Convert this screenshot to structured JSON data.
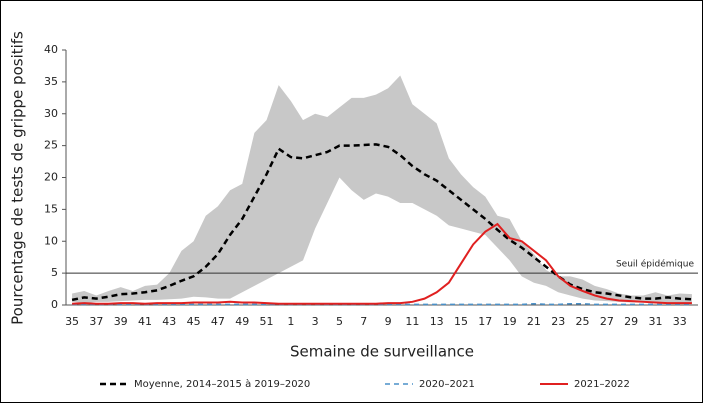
{
  "chart_data": {
    "type": "line",
    "y_label": "Pourcentage de tests de grippe positifs",
    "x_label": "Semaine de surveillance",
    "categories": [
      "35",
      null,
      "37",
      null,
      "39",
      null,
      "41",
      null,
      "43",
      null,
      "45",
      null,
      "47",
      null,
      "49",
      null,
      "51",
      null,
      "1",
      null,
      "3",
      null,
      "5",
      null,
      "7",
      null,
      "9",
      null,
      "11",
      null,
      "13",
      null,
      "15",
      null,
      "17",
      null,
      "19",
      null,
      "21",
      null,
      "23",
      null,
      "25",
      null,
      "27",
      null,
      "29",
      null,
      "31",
      null,
      "33",
      null
    ],
    "ylim": [
      0,
      40
    ],
    "yticks": [
      0,
      5,
      10,
      15,
      20,
      25,
      30,
      35,
      40
    ],
    "grid": false,
    "band": {
      "color": "#c8c8c8",
      "lower": [
        0.5,
        0.3,
        0.5,
        0.5,
        0.6,
        0.7,
        0.8,
        0.8,
        0.9,
        1.0,
        1.3,
        1.2,
        1.0,
        1.0,
        2,
        3,
        4,
        5,
        6,
        7,
        12,
        16,
        20,
        18,
        16.5,
        17.5,
        17,
        16,
        16,
        15,
        14,
        12.5,
        12,
        11.5,
        11,
        9,
        7,
        4.5,
        3.5,
        3,
        2,
        1.5,
        1,
        0.7,
        0.6,
        0.5,
        0.4,
        0.4,
        0.5,
        0.4,
        0.4,
        0.4
      ],
      "upper": [
        1.8,
        2.2,
        1.5,
        2.2,
        2.8,
        2.2,
        3,
        3.2,
        5,
        8.5,
        10,
        14,
        15.5,
        18,
        19,
        27,
        29,
        34.5,
        32,
        29,
        30,
        29.5,
        31,
        32.5,
        32.5,
        33,
        34,
        36,
        31.5,
        30,
        28.5,
        23,
        20.5,
        18.5,
        17,
        14,
        13.5,
        10,
        8,
        5.5,
        4.5,
        4.5,
        4,
        3,
        2.5,
        1.8,
        1.5,
        1.5,
        2,
        1.5,
        1.8,
        1.7
      ]
    },
    "threshold": {
      "value": 5,
      "label": "Seuil épidémique"
    },
    "legend": "bottom",
    "series": [
      {
        "name": "Moyenne, 2014–2015 à 2019–2020",
        "color": "#000000",
        "dash": "dashed",
        "width": 2.5,
        "values": [
          0.8,
          1.2,
          1.0,
          1.3,
          1.7,
          1.8,
          2.0,
          2.3,
          3.0,
          3.8,
          4.5,
          6.0,
          8.0,
          11,
          13.5,
          17,
          20.5,
          24.5,
          23.2,
          23,
          23.5,
          24,
          25,
          25,
          25.1,
          25.2,
          24.8,
          23.5,
          21.8,
          20.5,
          19.5,
          18,
          16.5,
          15,
          13.5,
          11.8,
          10.2,
          9,
          7.5,
          6,
          4.5,
          3.2,
          2.5,
          2.0,
          1.8,
          1.5,
          1.2,
          1.0,
          1.0,
          1.2,
          1.0,
          0.9
        ]
      },
      {
        "name": "2020–2021",
        "color": "#4a90c8",
        "dash": "dashed",
        "width": 1.5,
        "values": [
          0.1,
          0.1,
          0.1,
          0.1,
          0.1,
          0.1,
          0.1,
          0.1,
          0.1,
          0.1,
          0.1,
          0.1,
          0.1,
          0.1,
          0.1,
          0.1,
          0.1,
          0.1,
          0.1,
          0.1,
          0.1,
          0.1,
          0.1,
          0.1,
          0.1,
          0.1,
          0.1,
          0.1,
          0.1,
          0.1,
          0.1,
          0.1,
          0.1,
          0.1,
          0.1,
          0.1,
          0.1,
          0.1,
          0.2,
          0.1,
          0.1,
          0.2,
          0.2,
          0.1,
          0.1,
          0.1,
          0.1,
          0.1,
          0.1,
          0.1,
          0.1,
          0.1
        ]
      },
      {
        "name": "2021–2022",
        "color": "#e02020",
        "dash": "solid",
        "width": 2,
        "values": [
          0.2,
          0.3,
          0.2,
          0.2,
          0.3,
          0.3,
          0.2,
          0.3,
          0.3,
          0.3,
          0.4,
          0.4,
          0.4,
          0.5,
          0.4,
          0.4,
          0.3,
          0.2,
          0.2,
          0.2,
          0.2,
          0.2,
          0.2,
          0.2,
          0.2,
          0.2,
          0.3,
          0.3,
          0.5,
          1.0,
          2.0,
          3.5,
          6.5,
          9.5,
          11.5,
          12.7,
          10.5,
          10,
          8.5,
          7,
          4.5,
          3,
          2.2,
          1.5,
          1,
          0.7,
          0.6,
          0.5,
          0.4,
          0.3,
          0.3,
          0.3
        ]
      }
    ]
  }
}
